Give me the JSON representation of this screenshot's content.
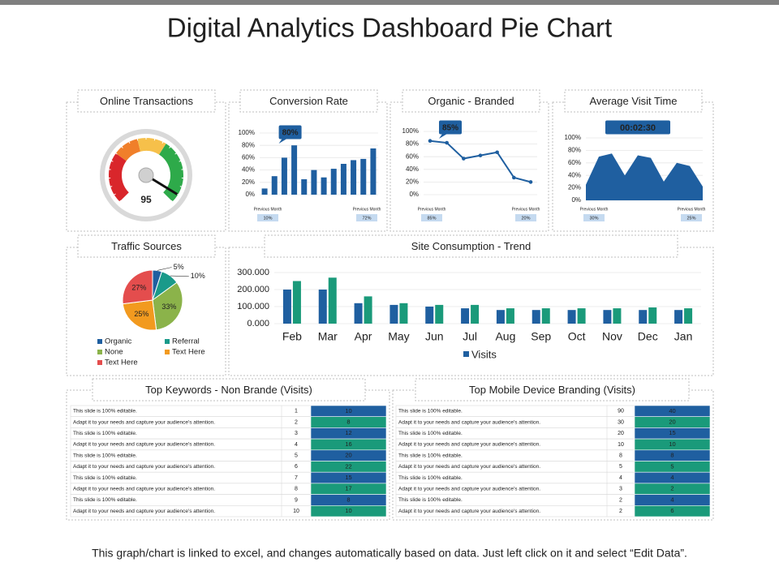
{
  "title": "Digital Analytics Dashboard Pie Chart",
  "chart_data": [
    {
      "type": "gauge",
      "title": "Online Transactions",
      "value": 95,
      "ylim": [
        0,
        100
      ]
    },
    {
      "type": "bar",
      "title": "Conversion Rate",
      "values": [
        10,
        30,
        60,
        80,
        25,
        40,
        28,
        42,
        50,
        56,
        58,
        75
      ],
      "color": "#1f5fa0",
      "ylim": [
        0,
        100
      ],
      "yticks": [
        {
          "value": 0,
          "label": "0%"
        },
        {
          "value": 20,
          "label": "20%"
        },
        {
          "value": 40,
          "label": "40%"
        },
        {
          "value": 60,
          "label": "60%"
        },
        {
          "value": 80,
          "label": "80%"
        },
        {
          "value": 100,
          "label": "100%"
        }
      ],
      "grid": true,
      "annotation": "80%",
      "footer": [
        {
          "label": "Previous Month",
          "value": "10%"
        },
        {
          "label": "Previous Month",
          "value": "72%"
        }
      ]
    },
    {
      "type": "line",
      "title": "Organic - Branded",
      "values": [
        85,
        82,
        57,
        62,
        67,
        27,
        20
      ],
      "color": "#1f5fa0",
      "ylim": [
        0,
        100
      ],
      "yticks": [
        {
          "value": 0,
          "label": "0%"
        },
        {
          "value": 20,
          "label": "20%"
        },
        {
          "value": 40,
          "label": "40%"
        },
        {
          "value": 60,
          "label": "60%"
        },
        {
          "value": 80,
          "label": "80%"
        },
        {
          "value": 100,
          "label": "100%"
        }
      ],
      "grid": true,
      "annotation": "85%",
      "footer": [
        {
          "label": "Previous Month",
          "value": "85%"
        },
        {
          "label": "Previous Month",
          "value": "20%"
        }
      ]
    },
    {
      "type": "area",
      "title": "Average Visit Time",
      "values": [
        25,
        70,
        75,
        40,
        72,
        68,
        30,
        60,
        55,
        22
      ],
      "color": "#1f5fa0",
      "ylim": [
        0,
        100
      ],
      "yticks": [
        {
          "value": 0,
          "label": "0%"
        },
        {
          "value": 20,
          "label": "20%"
        },
        {
          "value": 40,
          "label": "40%"
        },
        {
          "value": 60,
          "label": "60%"
        },
        {
          "value": 80,
          "label": "80%"
        },
        {
          "value": 100,
          "label": "100%"
        }
      ],
      "grid": true,
      "annotation": "00:02:30",
      "footer": [
        {
          "label": "Previous Month",
          "value": "30%"
        },
        {
          "label": "Previous Month",
          "value": "25%"
        }
      ]
    },
    {
      "type": "pie",
      "title": "Traffic Sources",
      "categories": [
        "Organic",
        "Referral",
        "None",
        "Text Here",
        "Text Here"
      ],
      "values": [
        5,
        10,
        33,
        25,
        27
      ],
      "value_labels": [
        "5%",
        "10%",
        "33%",
        "25%",
        "27%"
      ],
      "colors": [
        "#1f5fa0",
        "#1a9a8a",
        "#8bb34a",
        "#f29a1f",
        "#e44d4d"
      ]
    },
    {
      "type": "bar",
      "title": "Site Consumption - Trend",
      "categories": [
        "Feb",
        "Mar",
        "Apr",
        "May",
        "Jun",
        "Jul",
        "Aug",
        "Sep",
        "Oct",
        "Nov",
        "Dec",
        "Jan"
      ],
      "series": [
        {
          "name": "Visits",
          "color": "#1f5fa0",
          "values": [
            200000,
            200000,
            120000,
            110000,
            100000,
            90000,
            80000,
            80000,
            80000,
            80000,
            80000,
            80000
          ]
        },
        {
          "color": "#1a9a7a",
          "values": [
            250000,
            270000,
            160000,
            120000,
            110000,
            110000,
            90000,
            90000,
            90000,
            90000,
            95000,
            90000
          ]
        }
      ],
      "ylim": [
        0,
        300000
      ],
      "yticks": [
        {
          "value": 0,
          "label": "0.000"
        },
        {
          "value": 100000,
          "label": "100.000"
        },
        {
          "value": 200000,
          "label": "200.000"
        },
        {
          "value": 300000,
          "label": "300.000"
        }
      ],
      "grid": true
    }
  ],
  "tables": [
    {
      "title": "Top Keywords - Non Brande (Visits)",
      "rows": [
        [
          "This slide is 100% editable.",
          "1",
          "10"
        ],
        [
          "Adapt it to your needs and capture your audience's attention.",
          "2",
          "8"
        ],
        [
          "This slide is 100% editable.",
          "3",
          "12"
        ],
        [
          "Adapt it to your needs and capture your audience's attention.",
          "4",
          "16"
        ],
        [
          "This slide is 100% editable.",
          "5",
          "20"
        ],
        [
          "Adapt it to your needs and capture your audience's attention.",
          "6",
          "22"
        ],
        [
          "This slide is 100% editable.",
          "7",
          "15"
        ],
        [
          "Adapt it to your needs and capture your audience's attention.",
          "8",
          "17"
        ],
        [
          "This slide is 100% editable.",
          "9",
          "8"
        ],
        [
          "Adapt it to your needs and capture your audience's attention.",
          "10",
          "10"
        ]
      ]
    },
    {
      "title": "Top Mobile Device Branding (Visits)",
      "rows": [
        [
          "This slide is 100% editable.",
          "90",
          "40"
        ],
        [
          "Adapt it to your needs and capture your audience's attention.",
          "30",
          "20"
        ],
        [
          "This slide is 100% editable.",
          "20",
          "15"
        ],
        [
          "Adapt it to your needs and capture your audience's attention.",
          "10",
          "10"
        ],
        [
          "This slide is 100% editable.",
          "8",
          "8"
        ],
        [
          "Adapt it to your needs and capture your audience's attention.",
          "5",
          "5"
        ],
        [
          "This slide is 100% editable.",
          "4",
          "4"
        ],
        [
          "Adapt it to your needs and capture your audience's attention.",
          "3",
          "2"
        ],
        [
          "This slide is 100% editable.",
          "2",
          "4"
        ],
        [
          "Adapt it to your needs and capture your audience's attention.",
          "2",
          "6"
        ]
      ]
    }
  ],
  "footer": "This graph/chart is linked to excel, and changes automatically based on data. Just left click on it and select “Edit Data”."
}
